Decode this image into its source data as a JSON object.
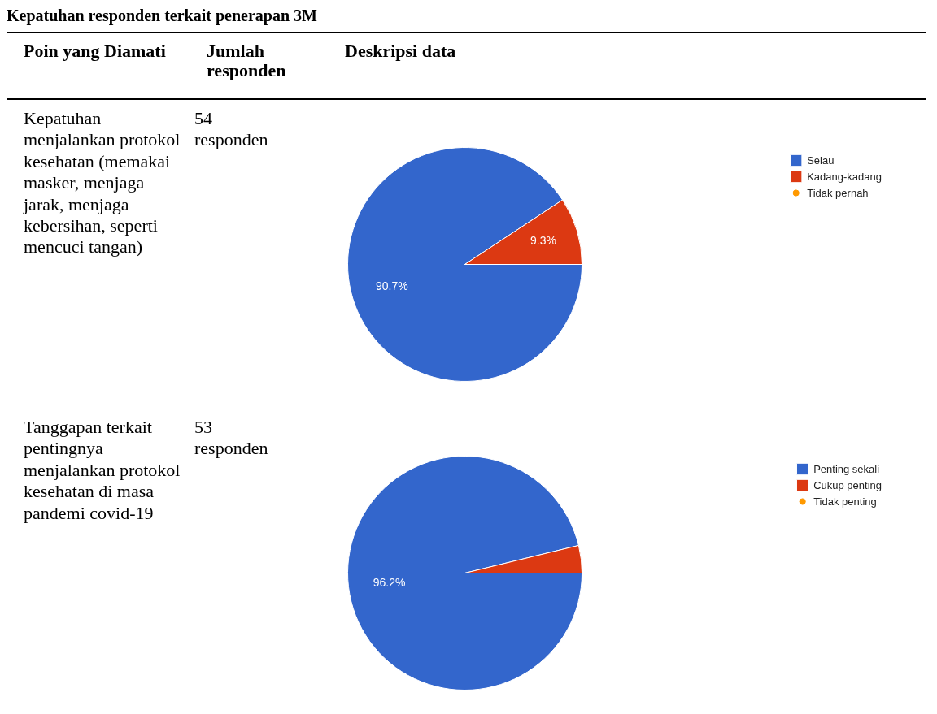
{
  "chart_data": [
    {
      "type": "pie",
      "title": "Kepatuhan responden terkait penerapan 3M",
      "categories": [
        "Selau",
        "Kadang-kadang",
        "Tidak pernah"
      ],
      "values": [
        90.7,
        9.3,
        0
      ],
      "colors": [
        "#3366cc",
        "#dc3912",
        "#ff9900"
      ],
      "value_labels": [
        "90.7%",
        "9.3%",
        null
      ],
      "legend": "right",
      "annotations": [
        "Poin yang Diamati",
        "Jumlah responden",
        "Deskripsi data",
        "Kepatuhan menjalankan protokol kesehatan (memakai masker, menjaga jarak, menjaga kebersihan, seperti mencuci tangan)",
        "54 responden"
      ]
    },
    {
      "type": "pie",
      "categories": [
        "Penting sekali",
        "Cukup penting",
        "Tidak penting"
      ],
      "values": [
        96.2,
        3.8,
        0
      ],
      "colors": [
        "#3366cc",
        "#dc3912",
        "#ff9900"
      ],
      "value_labels": [
        "96.2%",
        null,
        null
      ],
      "legend": "right",
      "annotations": [
        "Tanggapan terkait pentingnya menjalankan protokol kesehatan di masa pandemi covid-19",
        "53 responden"
      ]
    }
  ]
}
